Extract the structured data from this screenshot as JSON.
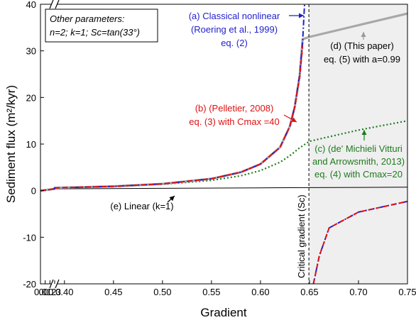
{
  "chart_data": {
    "type": "line",
    "xlabel": "Gradient",
    "ylabel": "Sediment flux (m²/kyr)",
    "xlim": [
      0,
      0.75
    ],
    "ylim": [
      -20,
      40
    ],
    "x_axis_break": [
      0.3,
      0.39
    ],
    "x_ticks": [
      0.0,
      0.1,
      0.2,
      0.3,
      0.4,
      0.45,
      0.5,
      0.55,
      0.6,
      0.65,
      0.7,
      0.75
    ],
    "x_tick_labels": [
      "0.0",
      "0.1",
      "0.2",
      "0.3",
      "0.40",
      "0.45",
      "0.50",
      "0.55",
      "0.60",
      "0.65",
      "0.70",
      "0.75"
    ],
    "y_ticks": [
      -20,
      -10,
      0,
      10,
      20,
      30,
      40
    ],
    "y_tick_labels": [
      "-20",
      "-10",
      "0",
      "10",
      "20",
      "30",
      "40"
    ],
    "critical_gradient": {
      "x": 0.6494,
      "label": "Critical gradient (Sc)",
      "shaded_region": [
        0.6494,
        0.75
      ]
    },
    "parameters_box": {
      "title": "Other parameters:",
      "line1": "n=2; k=1; Sc=tan(33°)"
    },
    "series": [
      {
        "key": "roering",
        "color": "#1f1fcc",
        "style": "dash-dot",
        "label_lines": [
          "(a) Classical nonlinear",
          "(Roering et al., 1999)",
          "eq. (2)"
        ],
        "points": [
          [
            0,
            0
          ],
          [
            0.1,
            0.11
          ],
          [
            0.2,
            0.24
          ],
          [
            0.3,
            0.41
          ],
          [
            0.39,
            0.61
          ],
          [
            0.4,
            0.65
          ],
          [
            0.45,
            0.92
          ],
          [
            0.5,
            1.45
          ],
          [
            0.55,
            2.55
          ],
          [
            0.58,
            3.95
          ],
          [
            0.6,
            5.7
          ],
          [
            0.62,
            9.3
          ],
          [
            0.63,
            13.8
          ],
          [
            0.635,
            18
          ],
          [
            0.64,
            25
          ],
          [
            0.643,
            32
          ],
          [
            0.645,
            40
          ]
        ],
        "points_right": [
          [
            0.654,
            -20
          ],
          [
            0.66,
            -14
          ],
          [
            0.67,
            -8
          ],
          [
            0.7,
            -4.6
          ],
          [
            0.75,
            -2.3
          ]
        ]
      },
      {
        "key": "pelletier",
        "color": "#e01010",
        "style": "dashed",
        "label_lines": [
          "(b) (Pelletier, 2008)",
          "eq. (3) with Cmax =40"
        ],
        "points": [
          [
            0,
            0
          ],
          [
            0.1,
            0.11
          ],
          [
            0.2,
            0.24
          ],
          [
            0.3,
            0.41
          ],
          [
            0.39,
            0.61
          ],
          [
            0.4,
            0.65
          ],
          [
            0.45,
            0.92
          ],
          [
            0.5,
            1.45
          ],
          [
            0.55,
            2.55
          ],
          [
            0.58,
            3.95
          ],
          [
            0.6,
            5.7
          ],
          [
            0.62,
            9.3
          ],
          [
            0.63,
            13.8
          ],
          [
            0.635,
            18
          ],
          [
            0.64,
            24.5
          ],
          [
            0.643,
            31
          ]
        ],
        "points_right": [
          [
            0.654,
            -20
          ],
          [
            0.66,
            -14
          ],
          [
            0.67,
            -8
          ],
          [
            0.7,
            -4.6
          ],
          [
            0.75,
            -2.3
          ]
        ]
      },
      {
        "key": "michieli",
        "color": "#1e7a1e",
        "style": "dotted",
        "label_lines": [
          "(c) (de' Michieli Vitturi",
          "and Arrowsmith, 2013)",
          "eq. (4) with Cmax=20"
        ],
        "points": [
          [
            0,
            0
          ],
          [
            0.1,
            0.11
          ],
          [
            0.2,
            0.24
          ],
          [
            0.3,
            0.41
          ],
          [
            0.39,
            0.61
          ],
          [
            0.4,
            0.65
          ],
          [
            0.45,
            0.9
          ],
          [
            0.5,
            1.35
          ],
          [
            0.55,
            2.2
          ],
          [
            0.58,
            3.2
          ],
          [
            0.6,
            4.3
          ],
          [
            0.62,
            6.1
          ],
          [
            0.63,
            7.5
          ],
          [
            0.64,
            9.2
          ],
          [
            0.65,
            10.6
          ],
          [
            0.7,
            13
          ],
          [
            0.75,
            15
          ]
        ]
      },
      {
        "key": "thispaper",
        "color": "#a8a8a8",
        "style": "solid",
        "label_lines": [
          "(d) (This paper)",
          "eq. (5) with a=0.99"
        ],
        "points": [
          [
            0,
            0
          ],
          [
            0.1,
            0.11
          ],
          [
            0.2,
            0.24
          ],
          [
            0.3,
            0.41
          ],
          [
            0.39,
            0.61
          ],
          [
            0.4,
            0.65
          ],
          [
            0.45,
            0.92
          ],
          [
            0.5,
            1.45
          ],
          [
            0.55,
            2.55
          ],
          [
            0.58,
            3.95
          ],
          [
            0.6,
            5.7
          ],
          [
            0.62,
            9.3
          ],
          [
            0.63,
            13.8
          ],
          [
            0.635,
            18
          ],
          [
            0.64,
            24.5
          ],
          [
            0.643,
            32.5
          ],
          [
            0.65,
            33
          ],
          [
            0.7,
            35.5
          ],
          [
            0.75,
            38
          ]
        ]
      },
      {
        "key": "linear",
        "color": "#000000",
        "style": "solid",
        "label_lines": [
          "(e) Linear (k=1)"
        ],
        "points": [
          [
            0,
            0
          ],
          [
            0.1,
            0.1
          ],
          [
            0.2,
            0.2
          ],
          [
            0.3,
            0.3
          ],
          [
            0.39,
            0.39
          ],
          [
            0.4,
            0.4
          ],
          [
            0.5,
            0.5
          ],
          [
            0.6,
            0.6
          ],
          [
            0.65,
            0.65
          ],
          [
            0.7,
            0.7
          ],
          [
            0.75,
            0.75
          ]
        ]
      }
    ]
  }
}
